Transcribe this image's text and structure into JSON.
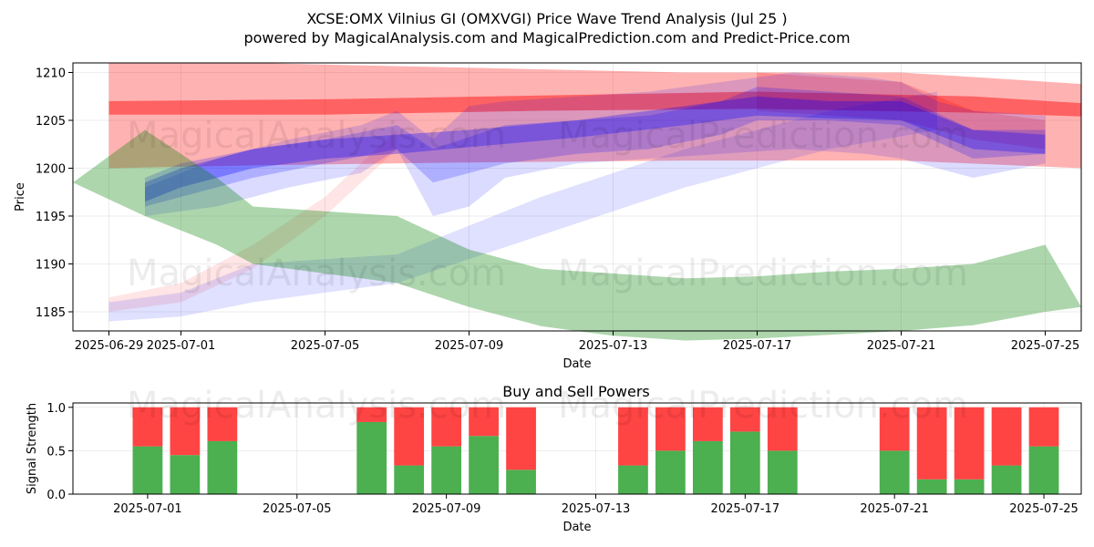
{
  "figure": {
    "title_line1": "XCSE:OMX Vilnius GI (OMXVGI) Price Wave Trend Analysis (Jul 25 )",
    "title_line2": "powered by MagicalAnalysis.com and MagicalPrediction.com and Predict-Price.com",
    "watermarks": [
      "MagicalAnalysis.com",
      "MagicalPrediction.com"
    ]
  },
  "colors": {
    "red": "#ff0000",
    "blue": "#0000ff",
    "green": "#008000",
    "buy": "#4caf50",
    "sell": "#ff4444",
    "grid": "#b0b0b0"
  },
  "chart_data": [
    {
      "type": "area",
      "title": "",
      "xlabel": "Date",
      "ylabel": "Price",
      "xlim": [
        "2025-06-28",
        "2025-07-26"
      ],
      "ylim": [
        1183,
        1211
      ],
      "x_ticks": [
        "2025-06-29",
        "2025-07-01",
        "2025-07-05",
        "2025-07-09",
        "2025-07-13",
        "2025-07-17",
        "2025-07-21",
        "2025-07-25"
      ],
      "y_ticks": [
        1185,
        1190,
        1195,
        1200,
        1205,
        1210
      ],
      "grid": true,
      "bands": [
        {
          "color": "red",
          "opacity": 0.3,
          "x": [
            "2025-06-29",
            "2025-07-03",
            "2025-07-09",
            "2025-07-15",
            "2025-07-21",
            "2025-07-26"
          ],
          "upper": [
            1211,
            1211,
            1210.5,
            1210,
            1210,
            1208.8
          ],
          "lower": [
            1200,
            1200.3,
            1200.6,
            1200.8,
            1200.8,
            1200
          ]
        },
        {
          "color": "red",
          "opacity": 0.45,
          "x": [
            "2025-06-29",
            "2025-07-05",
            "2025-07-11",
            "2025-07-17",
            "2025-07-23",
            "2025-07-26"
          ],
          "upper": [
            1207,
            1207.2,
            1207.6,
            1208,
            1207.5,
            1206.8
          ],
          "lower": [
            1205.6,
            1205.6,
            1206,
            1206.2,
            1205.8,
            1205.4
          ]
        },
        {
          "color": "red",
          "opacity": 0.1,
          "x": [
            "2025-06-29",
            "2025-07-01",
            "2025-07-03",
            "2025-07-05",
            "2025-07-07"
          ],
          "upper": [
            1186.5,
            1188,
            1192,
            1197,
            1204
          ],
          "lower": [
            1185,
            1186,
            1189.5,
            1195,
            1202
          ]
        },
        {
          "color": "red",
          "opacity": 0.2,
          "x": [
            "2025-07-17",
            "2025-07-21",
            "2025-07-23",
            "2025-07-25"
          ],
          "upper": [
            1210,
            1209,
            1206,
            1205
          ],
          "lower": [
            1206,
            1205,
            1203,
            1202
          ]
        },
        {
          "color": "blue",
          "opacity": 0.12,
          "x": [
            "2025-06-29",
            "2025-07-01",
            "2025-07-03",
            "2025-07-07",
            "2025-07-11",
            "2025-07-15",
            "2025-07-19",
            "2025-07-22"
          ],
          "upper": [
            1186,
            1187,
            1190,
            1191,
            1197,
            1202,
            1206,
            1208
          ],
          "lower": [
            1184,
            1184.5,
            1186,
            1188,
            1193,
            1198,
            1202,
            1204
          ]
        },
        {
          "color": "blue",
          "opacity": 0.14,
          "x": [
            "2025-06-30",
            "2025-07-02",
            "2025-07-04",
            "2025-07-06",
            "2025-07-07",
            "2025-07-08",
            "2025-07-09",
            "2025-07-10",
            "2025-07-12",
            "2025-07-14",
            "2025-07-16",
            "2025-07-18",
            "2025-07-20",
            "2025-07-21",
            "2025-07-22",
            "2025-07-23",
            "2025-07-25"
          ],
          "upper": [
            1198,
            1201,
            1203,
            1204.5,
            1206,
            1203,
            1206.5,
            1207,
            1207.5,
            1208,
            1209,
            1210,
            1209.5,
            1209,
            1207,
            1206,
            1205.5
          ],
          "lower": [
            1195,
            1196,
            1198,
            1199.5,
            1202,
            1195,
            1196,
            1199,
            1200.5,
            1201,
            1201.5,
            1202,
            1201.5,
            1201,
            1200,
            1199,
            1200.5
          ]
        },
        {
          "color": "blue",
          "opacity": 0.2,
          "x": [
            "2025-06-30",
            "2025-07-01",
            "2025-07-03",
            "2025-07-05",
            "2025-07-07",
            "2025-07-08",
            "2025-07-10",
            "2025-07-12",
            "2025-07-14",
            "2025-07-16",
            "2025-07-17",
            "2025-07-19",
            "2025-07-21",
            "2025-07-23",
            "2025-07-25"
          ],
          "upper": [
            1199,
            1200.5,
            1202,
            1203,
            1204.5,
            1202,
            1204.5,
            1205,
            1205.5,
            1207,
            1208.5,
            1208,
            1207.5,
            1204,
            1204
          ],
          "lower": [
            1196,
            1197,
            1199,
            1200.5,
            1202,
            1198.5,
            1200.5,
            1201.5,
            1202,
            1203.5,
            1205,
            1205,
            1204.5,
            1201,
            1201.5
          ]
        },
        {
          "color": "blue",
          "opacity": 0.3,
          "x": [
            "2025-06-30",
            "2025-07-01",
            "2025-07-03",
            "2025-07-05",
            "2025-07-07",
            "2025-07-09",
            "2025-07-12",
            "2025-07-15",
            "2025-07-17",
            "2025-07-19",
            "2025-07-21",
            "2025-07-23",
            "2025-07-25"
          ],
          "upper": [
            1198.5,
            1200,
            1202,
            1203,
            1203.5,
            1204,
            1205,
            1206.5,
            1207.5,
            1207,
            1207,
            1204,
            1203.5
          ],
          "lower": [
            1196.5,
            1198,
            1200,
            1201,
            1201.5,
            1202.2,
            1203.2,
            1204.5,
            1205.5,
            1205.2,
            1205,
            1202,
            1201.5
          ]
        },
        {
          "color": "green",
          "opacity": 0.32,
          "x": [
            "2025-06-28",
            "2025-06-30",
            "2025-07-02",
            "2025-07-03",
            "2025-07-05",
            "2025-07-07",
            "2025-07-09",
            "2025-07-11",
            "2025-07-13",
            "2025-07-15",
            "2025-07-17",
            "2025-07-19",
            "2025-07-21",
            "2025-07-23",
            "2025-07-25",
            "2025-07-26"
          ],
          "upper": [
            1198.5,
            1204,
            1199,
            1196,
            1195.5,
            1195,
            1191.5,
            1189.5,
            1189,
            1188.5,
            1188.7,
            1189.2,
            1189.5,
            1190,
            1192,
            1185.5
          ],
          "lower": [
            1198.5,
            1195,
            1192,
            1190,
            1189,
            1188,
            1185.5,
            1183.5,
            1182.5,
            1182,
            1182.2,
            1182.6,
            1183,
            1183.6,
            1185,
            1185.5
          ]
        }
      ]
    },
    {
      "type": "bar",
      "title": "Buy and Sell Powers",
      "xlabel": "Date",
      "ylabel": "Signal Strength",
      "xlim": [
        "2025-06-29",
        "2025-07-26"
      ],
      "ylim": [
        0,
        1.05
      ],
      "x_ticks": [
        "2025-07-01",
        "2025-07-05",
        "2025-07-09",
        "2025-07-13",
        "2025-07-17",
        "2025-07-21",
        "2025-07-25"
      ],
      "y_ticks": [
        0.0,
        0.5,
        1.0
      ],
      "grid": true,
      "categories": [
        "2025-07-01",
        "2025-07-02",
        "2025-07-03",
        "2025-07-07",
        "2025-07-08",
        "2025-07-09",
        "2025-07-10",
        "2025-07-11",
        "2025-07-14",
        "2025-07-15",
        "2025-07-16",
        "2025-07-17",
        "2025-07-18",
        "2025-07-21",
        "2025-07-22",
        "2025-07-23",
        "2025-07-24",
        "2025-07-25"
      ],
      "series": [
        {
          "values": [
            0.55,
            0.45,
            0.61,
            0.83,
            0.33,
            0.55,
            0.67,
            0.28,
            0.33,
            0.5,
            0.61,
            0.72,
            0.5,
            0.5,
            0.17,
            0.17,
            0.33,
            0.55
          ]
        },
        {
          "values": [
            0.45,
            0.55,
            0.39,
            0.17,
            0.67,
            0.45,
            0.33,
            0.72,
            0.67,
            0.5,
            0.39,
            0.28,
            0.5,
            0.5,
            0.83,
            0.83,
            0.67,
            0.45
          ]
        }
      ]
    }
  ]
}
